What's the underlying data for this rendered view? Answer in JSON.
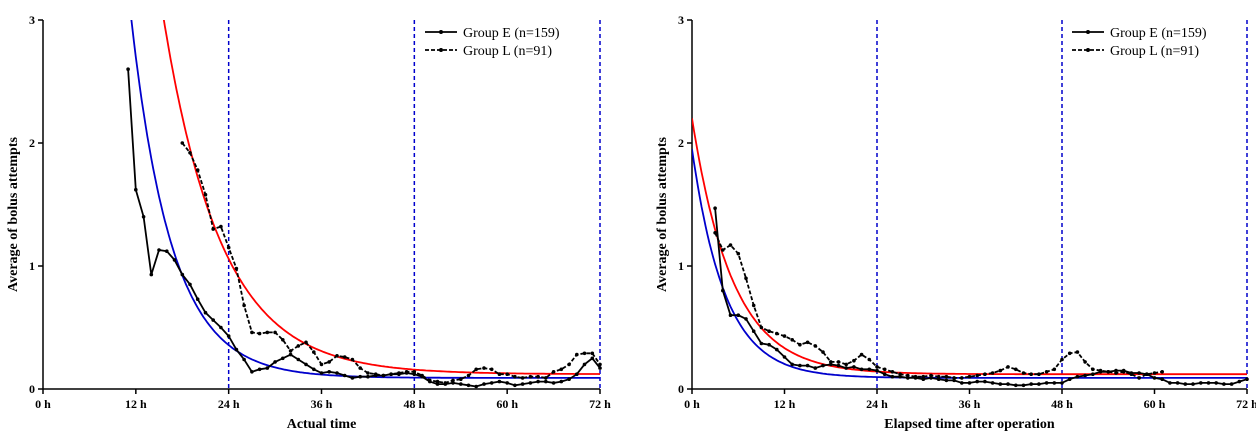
{
  "chart_data": [
    {
      "type": "line",
      "xlabel": "Actual time",
      "ylabel": "Average of bolus attempts",
      "xlim": [
        0,
        72
      ],
      "ylim": [
        0,
        3
      ],
      "x_ticks": [
        "0 h",
        "12 h",
        "24 h",
        "36 h",
        "48 h",
        "60 h",
        "72 h"
      ],
      "y_ticks": [
        "0",
        "1",
        "2",
        "3"
      ],
      "reference_lines_x": [
        24,
        48,
        72
      ],
      "reference_line_color": "#0000cc",
      "legend_position": "top-right",
      "series": [
        {
          "name": "Group E (n=159)",
          "style": "solid",
          "color": "#000000",
          "x": [
            11,
            12,
            13,
            14,
            15,
            16,
            17,
            18,
            19,
            20,
            21,
            22,
            23,
            24,
            25,
            26,
            27,
            28,
            29,
            30,
            31,
            32,
            33,
            34,
            35,
            36,
            37,
            38,
            39,
            40,
            41,
            42,
            43,
            44,
            45,
            46,
            47,
            48,
            49,
            50,
            51,
            52,
            53,
            54,
            55,
            56,
            57,
            58,
            59,
            60,
            61,
            62,
            63,
            64,
            65,
            66,
            67,
            68,
            69,
            70,
            71,
            72
          ],
          "values": [
            2.6,
            1.62,
            1.4,
            0.93,
            1.13,
            1.12,
            1.05,
            0.93,
            0.85,
            0.73,
            0.62,
            0.56,
            0.5,
            0.43,
            0.32,
            0.24,
            0.14,
            0.16,
            0.17,
            0.22,
            0.25,
            0.28,
            0.24,
            0.2,
            0.16,
            0.13,
            0.14,
            0.13,
            0.11,
            0.09,
            0.1,
            0.1,
            0.11,
            0.11,
            0.12,
            0.12,
            0.13,
            0.12,
            0.1,
            0.06,
            0.04,
            0.04,
            0.05,
            0.04,
            0.03,
            0.02,
            0.04,
            0.05,
            0.06,
            0.05,
            0.03,
            0.04,
            0.05,
            0.06,
            0.06,
            0.05,
            0.06,
            0.08,
            0.12,
            0.2,
            0.25,
            0.17
          ]
        },
        {
          "name": "Group L (n=91)",
          "style": "dashed",
          "color": "#000000",
          "x": [
            18,
            19,
            20,
            21,
            22,
            23,
            24,
            25,
            26,
            27,
            28,
            29,
            30,
            31,
            32,
            33,
            34,
            35,
            36,
            37,
            38,
            39,
            40,
            41,
            42,
            43,
            44,
            45,
            46,
            47,
            48,
            49,
            50,
            51,
            52,
            53,
            54,
            55,
            56,
            57,
            58,
            59,
            60,
            61,
            62,
            63,
            64,
            65,
            66,
            67,
            68,
            69,
            70,
            71,
            72
          ],
          "values": [
            2.0,
            1.92,
            1.78,
            1.58,
            1.3,
            1.32,
            1.15,
            0.98,
            0.68,
            0.46,
            0.45,
            0.46,
            0.46,
            0.4,
            0.31,
            0.35,
            0.38,
            0.3,
            0.2,
            0.22,
            0.27,
            0.26,
            0.24,
            0.17,
            0.13,
            0.12,
            0.11,
            0.12,
            0.13,
            0.14,
            0.14,
            0.11,
            0.07,
            0.06,
            0.05,
            0.07,
            0.08,
            0.11,
            0.16,
            0.17,
            0.16,
            0.12,
            0.12,
            0.1,
            0.09,
            0.1,
            0.1,
            0.09,
            0.14,
            0.16,
            0.2,
            0.28,
            0.29,
            0.29,
            0.2
          ]
        }
      ],
      "fit_curves": [
        {
          "color": "#0000cc",
          "y0": 25.6,
          "plateau": 0.09,
          "k": 0.19
        },
        {
          "color": "#ff0000",
          "y0": 23.5,
          "plateau": 0.12,
          "k": 0.134
        }
      ]
    },
    {
      "type": "line",
      "xlabel": "Elapsed time after operation",
      "ylabel": "Average of bolus attempts",
      "xlim": [
        0,
        72
      ],
      "ylim": [
        0,
        3
      ],
      "x_ticks": [
        "0 h",
        "12 h",
        "24 h",
        "36 h",
        "48 h",
        "60 h",
        "72 h"
      ],
      "y_ticks": [
        "0",
        "1",
        "2",
        "3"
      ],
      "reference_lines_x": [
        24,
        48,
        72
      ],
      "reference_line_color": "#0000cc",
      "legend_position": "top-right",
      "series": [
        {
          "name": "Group E (n=159)",
          "style": "solid",
          "color": "#000000",
          "x": [
            3,
            4,
            5,
            6,
            7,
            8,
            9,
            10,
            11,
            12,
            13,
            14,
            15,
            16,
            17,
            18,
            19,
            20,
            21,
            22,
            23,
            24,
            25,
            26,
            27,
            28,
            29,
            30,
            31,
            32,
            33,
            34,
            35,
            36,
            37,
            38,
            39,
            40,
            41,
            42,
            43,
            44,
            45,
            46,
            47,
            48,
            49,
            50,
            51,
            52,
            53,
            54,
            55,
            56,
            57,
            58,
            59,
            60,
            61,
            62,
            63,
            64,
            65,
            66,
            67,
            68,
            69,
            70,
            71,
            72
          ],
          "values": [
            1.47,
            0.8,
            0.6,
            0.6,
            0.57,
            0.47,
            0.37,
            0.36,
            0.32,
            0.26,
            0.2,
            0.19,
            0.19,
            0.17,
            0.19,
            0.2,
            0.19,
            0.17,
            0.18,
            0.16,
            0.16,
            0.15,
            0.12,
            0.1,
            0.1,
            0.09,
            0.09,
            0.08,
            0.09,
            0.08,
            0.07,
            0.07,
            0.05,
            0.05,
            0.06,
            0.06,
            0.05,
            0.04,
            0.04,
            0.03,
            0.03,
            0.04,
            0.04,
            0.05,
            0.05,
            0.05,
            0.08,
            0.1,
            0.11,
            0.12,
            0.14,
            0.14,
            0.15,
            0.15,
            0.13,
            0.13,
            0.12,
            0.09,
            0.08,
            0.05,
            0.05,
            0.04,
            0.04,
            0.05,
            0.05,
            0.05,
            0.04,
            0.04,
            0.06,
            0.08
          ]
        },
        {
          "name": "Group L (n=91)",
          "style": "dashed",
          "color": "#000000",
          "x": [
            3,
            4,
            5,
            6,
            7,
            8,
            9,
            10,
            11,
            12,
            13,
            14,
            15,
            16,
            17,
            18,
            19,
            20,
            21,
            22,
            23,
            24,
            25,
            26,
            27,
            28,
            29,
            30,
            31,
            32,
            33,
            34,
            35,
            36,
            37,
            38,
            39,
            40,
            41,
            42,
            43,
            44,
            45,
            46,
            47,
            48,
            49,
            50,
            51,
            52,
            53,
            54,
            55,
            56,
            57,
            58,
            59,
            60,
            61
          ],
          "values": [
            1.27,
            1.13,
            1.17,
            1.1,
            0.9,
            0.68,
            0.5,
            0.47,
            0.45,
            0.43,
            0.4,
            0.36,
            0.38,
            0.35,
            0.3,
            0.22,
            0.22,
            0.2,
            0.23,
            0.28,
            0.24,
            0.18,
            0.16,
            0.14,
            0.12,
            0.11,
            0.1,
            0.1,
            0.11,
            0.1,
            0.1,
            0.09,
            0.09,
            0.1,
            0.11,
            0.12,
            0.13,
            0.15,
            0.18,
            0.16,
            0.13,
            0.12,
            0.12,
            0.14,
            0.16,
            0.24,
            0.29,
            0.3,
            0.22,
            0.16,
            0.15,
            0.14,
            0.13,
            0.14,
            0.12,
            0.09,
            0.12,
            0.13,
            0.14
          ]
        }
      ],
      "fit_curves": [
        {
          "color": "#0000cc",
          "y0": 1.95,
          "plateau": 0.09,
          "k": 0.233
        },
        {
          "color": "#ff0000",
          "y0": 2.2,
          "plateau": 0.12,
          "k": 0.19
        }
      ]
    }
  ]
}
